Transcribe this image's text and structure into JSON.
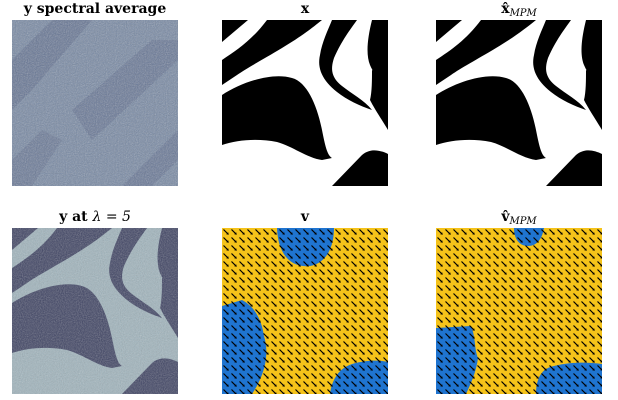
{
  "panels": [
    {
      "id": "y-spectral-average",
      "title": "y spectral average",
      "title_bold": "y spectral average",
      "title_math": "",
      "title_sub": ""
    },
    {
      "id": "x",
      "title": "x",
      "title_bold": "x",
      "title_math": "",
      "title_sub": ""
    },
    {
      "id": "x-mpm",
      "title": "x̂MPM",
      "title_bold": "x̂",
      "title_math": "",
      "title_sub": "MPM"
    },
    {
      "id": "y-lambda",
      "title": "y at λ = 5",
      "title_bold": "y at ",
      "title_math": "λ = 5",
      "title_sub": ""
    },
    {
      "id": "v",
      "title": "v",
      "title_bold": "v",
      "title_math": "",
      "title_sub": ""
    },
    {
      "id": "v-mpm",
      "title": "v̂MPM",
      "title_bold": "v̂",
      "title_math": "",
      "title_sub": "MPM"
    }
  ],
  "colors": {
    "black": "#000000",
    "white": "#ffffff",
    "yellow": "#f5c31a",
    "blue": "#1f74d0",
    "noise_dark": "#3a3f60",
    "noise_light": "#9fb4bd"
  }
}
